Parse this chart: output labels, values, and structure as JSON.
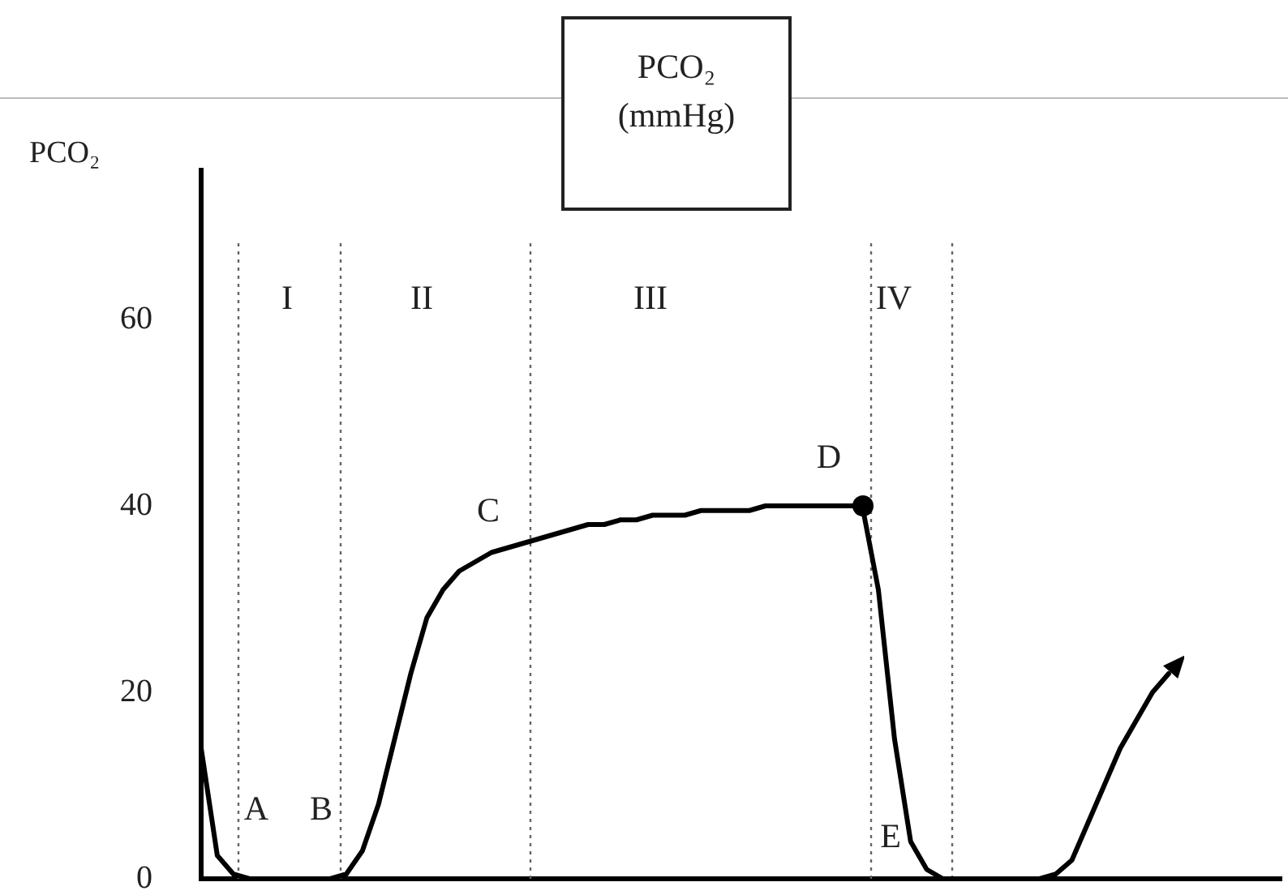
{
  "chart_data": {
    "type": "line",
    "title": "PCO₂ (mmHg)",
    "ylabel": "PCO₂",
    "categories": [
      null,
      null,
      null,
      null,
      null,
      null,
      null,
      null,
      null,
      null,
      null,
      null,
      null,
      null,
      null,
      null,
      null,
      null,
      null,
      null,
      null,
      null,
      null,
      null,
      null,
      null,
      null,
      null,
      null,
      null,
      null,
      null,
      null,
      null,
      null,
      null,
      null,
      null,
      null,
      null,
      null,
      null,
      null,
      null,
      null,
      null,
      null,
      null,
      null,
      null,
      null,
      null,
      null,
      null,
      null,
      null,
      null,
      null,
      null,
      null,
      null,
      null,
      null,
      null,
      null,
      null,
      null,
      null
    ],
    "ylim": [
      0,
      76
    ],
    "yticks": [
      0,
      20,
      40,
      60
    ],
    "tick_labels": "y",
    "grid": false,
    "legend": false,
    "series": [
      {
        "color": "#000000",
        "marker": "none",
        "line_style": "solid",
        "values": [
          14,
          2.5,
          0.5,
          0,
          0,
          0,
          0,
          0,
          0,
          0.5,
          3,
          8,
          15,
          22,
          28,
          31,
          33,
          34,
          35,
          35.5,
          36,
          36.5,
          37,
          37.5,
          38,
          38,
          38.5,
          38.5,
          39,
          39,
          39,
          39.5,
          39.5,
          39.5,
          39.5,
          40,
          40,
          40,
          40,
          40,
          40,
          40,
          31,
          15,
          4,
          1,
          0,
          0,
          0,
          0,
          0,
          0,
          0,
          0.5,
          2,
          6,
          10,
          14,
          17,
          20,
          22,
          null,
          null,
          null,
          null,
          null,
          null,
          null
        ]
      }
    ],
    "ref_lines": [
      {
        "axis": "x",
        "color": "#666666",
        "line_style": "dotted"
      },
      {
        "axis": "x",
        "color": "#666666",
        "line_style": "dotted"
      },
      {
        "axis": "x",
        "color": "#666666",
        "line_style": "dotted"
      },
      {
        "axis": "x",
        "color": "#666666",
        "line_style": "dotted"
      },
      {
        "axis": "x",
        "color": "#666666",
        "line_style": "dotted"
      }
    ],
    "annotations": [
      "I",
      "II",
      "III",
      "IV",
      "A",
      "B",
      "C",
      "D",
      "E"
    ]
  }
}
